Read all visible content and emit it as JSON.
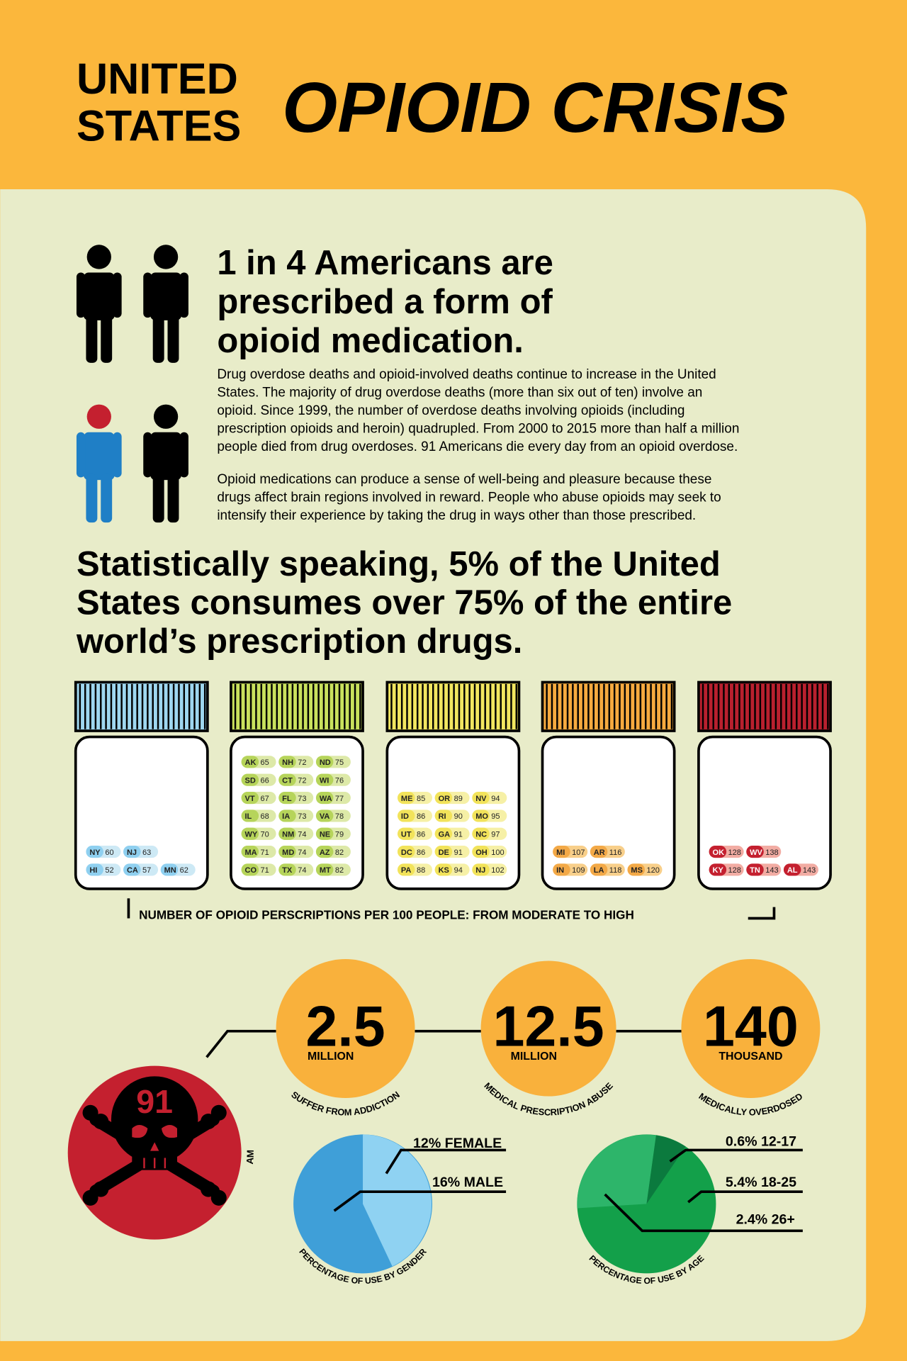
{
  "header": {
    "title_line1": "UNITED",
    "title_line2": "STATES",
    "title_main": "OPIOID CRISIS"
  },
  "intro": {
    "headline_lines": [
      "1 in 4 Americans are",
      "prescribed a form of",
      "opioid medication."
    ],
    "paragraph1_lines": [
      "Drug overdose deaths and opioid-involved deaths continue to increase in the United",
      "States. The majority of drug overdose deaths (more than six out of ten) involve an",
      "opioid.  Since 1999, the number of overdose deaths involving opioids (including",
      "prescription opioids and heroin) quadrupled. From 2000 to 2015 more than half a million",
      "people died from drug overdoses. 91 Americans die every day from an opioid overdose."
    ],
    "paragraph2_lines": [
      "Opioid medications can produce a sense of well-being and pleasure because these",
      "drugs affect brain regions involved in reward. People who abuse opioids may seek to",
      "intensify their experience by taking the drug in ways other than those prescribed."
    ]
  },
  "statement_lines": [
    "Statistically speaking, 5% of the United",
    "States consumes over 75% of the entire",
    "world’s prescription drugs."
  ],
  "bottles": [
    {
      "columns": [
        [
          {
            "code": "NY",
            "value": 60
          },
          {
            "code": "HI",
            "value": 52
          }
        ],
        [
          {
            "code": "NJ",
            "value": 63
          },
          {
            "code": "CA",
            "value": 57
          }
        ],
        [
          {
            "code": "MN",
            "value": 62
          }
        ]
      ]
    },
    {
      "columns": [
        [
          {
            "code": "AK",
            "value": 65
          },
          {
            "code": "SD",
            "value": 66
          },
          {
            "code": "VT",
            "value": 67
          },
          {
            "code": "IL",
            "value": 68
          },
          {
            "code": "WY",
            "value": 70
          },
          {
            "code": "MA",
            "value": 71
          },
          {
            "code": "CO",
            "value": 71
          }
        ],
        [
          {
            "code": "NH",
            "value": 72
          },
          {
            "code": "CT",
            "value": 72
          },
          {
            "code": "FL",
            "value": 73
          },
          {
            "code": "IA",
            "value": 73
          },
          {
            "code": "NM",
            "value": 74
          },
          {
            "code": "MD",
            "value": 74
          },
          {
            "code": "TX",
            "value": 74
          }
        ],
        [
          {
            "code": "ND",
            "value": 75
          },
          {
            "code": "WI",
            "value": 76
          },
          {
            "code": "WA",
            "value": 77
          },
          {
            "code": "VA",
            "value": 78
          },
          {
            "code": "NE",
            "value": 79
          },
          {
            "code": "AZ",
            "value": 82
          },
          {
            "code": "MT",
            "value": 82
          }
        ]
      ]
    },
    {
      "columns": [
        [
          {
            "code": "ME",
            "value": 85
          },
          {
            "code": "ID",
            "value": 86
          },
          {
            "code": "UT",
            "value": 86
          },
          {
            "code": "DC",
            "value": 86
          },
          {
            "code": "PA",
            "value": 88
          }
        ],
        [
          {
            "code": "OR",
            "value": 89
          },
          {
            "code": "RI",
            "value": 90
          },
          {
            "code": "GA",
            "value": 91
          },
          {
            "code": "DE",
            "value": 91
          },
          {
            "code": "KS",
            "value": 94
          }
        ],
        [
          {
            "code": "NV",
            "value": 94
          },
          {
            "code": "MO",
            "value": 95
          },
          {
            "code": "NC",
            "value": 97
          },
          {
            "code": "OH",
            "value": 100
          },
          {
            "code": "NJ",
            "value": 102
          }
        ]
      ]
    },
    {
      "columns": [
        [
          {
            "code": "MI",
            "value": 107
          },
          {
            "code": "IN",
            "value": 109
          }
        ],
        [
          {
            "code": "AR",
            "value": 116
          },
          {
            "code": "LA",
            "value": 118
          }
        ],
        [
          {
            "code": "MS",
            "value": 120
          }
        ]
      ]
    },
    {
      "columns": [
        [
          {
            "code": "OK",
            "value": 128
          },
          {
            "code": "KY",
            "value": 128
          }
        ],
        [
          {
            "code": "WV",
            "value": 138
          },
          {
            "code": "TN",
            "value": 143
          }
        ],
        [
          {
            "code": "AL",
            "value": 143
          }
        ]
      ]
    }
  ],
  "bottles_caption": "NUMBER OF OPIOID PERSCRIPTIONS PER 100 PEOPLE: FROM MODERATE TO HIGH",
  "stats": [
    {
      "value": 2.5,
      "unit": "MILLION",
      "label": "SUFFER FROM ADDICTION"
    },
    {
      "value": 12.5,
      "unit": "MILLION",
      "label": "MEDICAL PRESCRIPTION ABUSE"
    },
    {
      "value": 140,
      "unit": "THOUSAND",
      "label": "MEDICALLY OVERDOSED"
    }
  ],
  "deaths": {
    "value": 91,
    "label": "AMERICAN DEATHS DAILY"
  },
  "gender_pie": {
    "caption": "PERCENTAGE OF USE BY GENDER",
    "labels": [
      "12% FEMALE",
      "16% MALE"
    ]
  },
  "age_pie": {
    "caption": "PERCENTAGE OF USE BY AGE",
    "labels": [
      "0.6% 12-17",
      "5.4% 18-25",
      "2.4% 26+"
    ]
  }
}
